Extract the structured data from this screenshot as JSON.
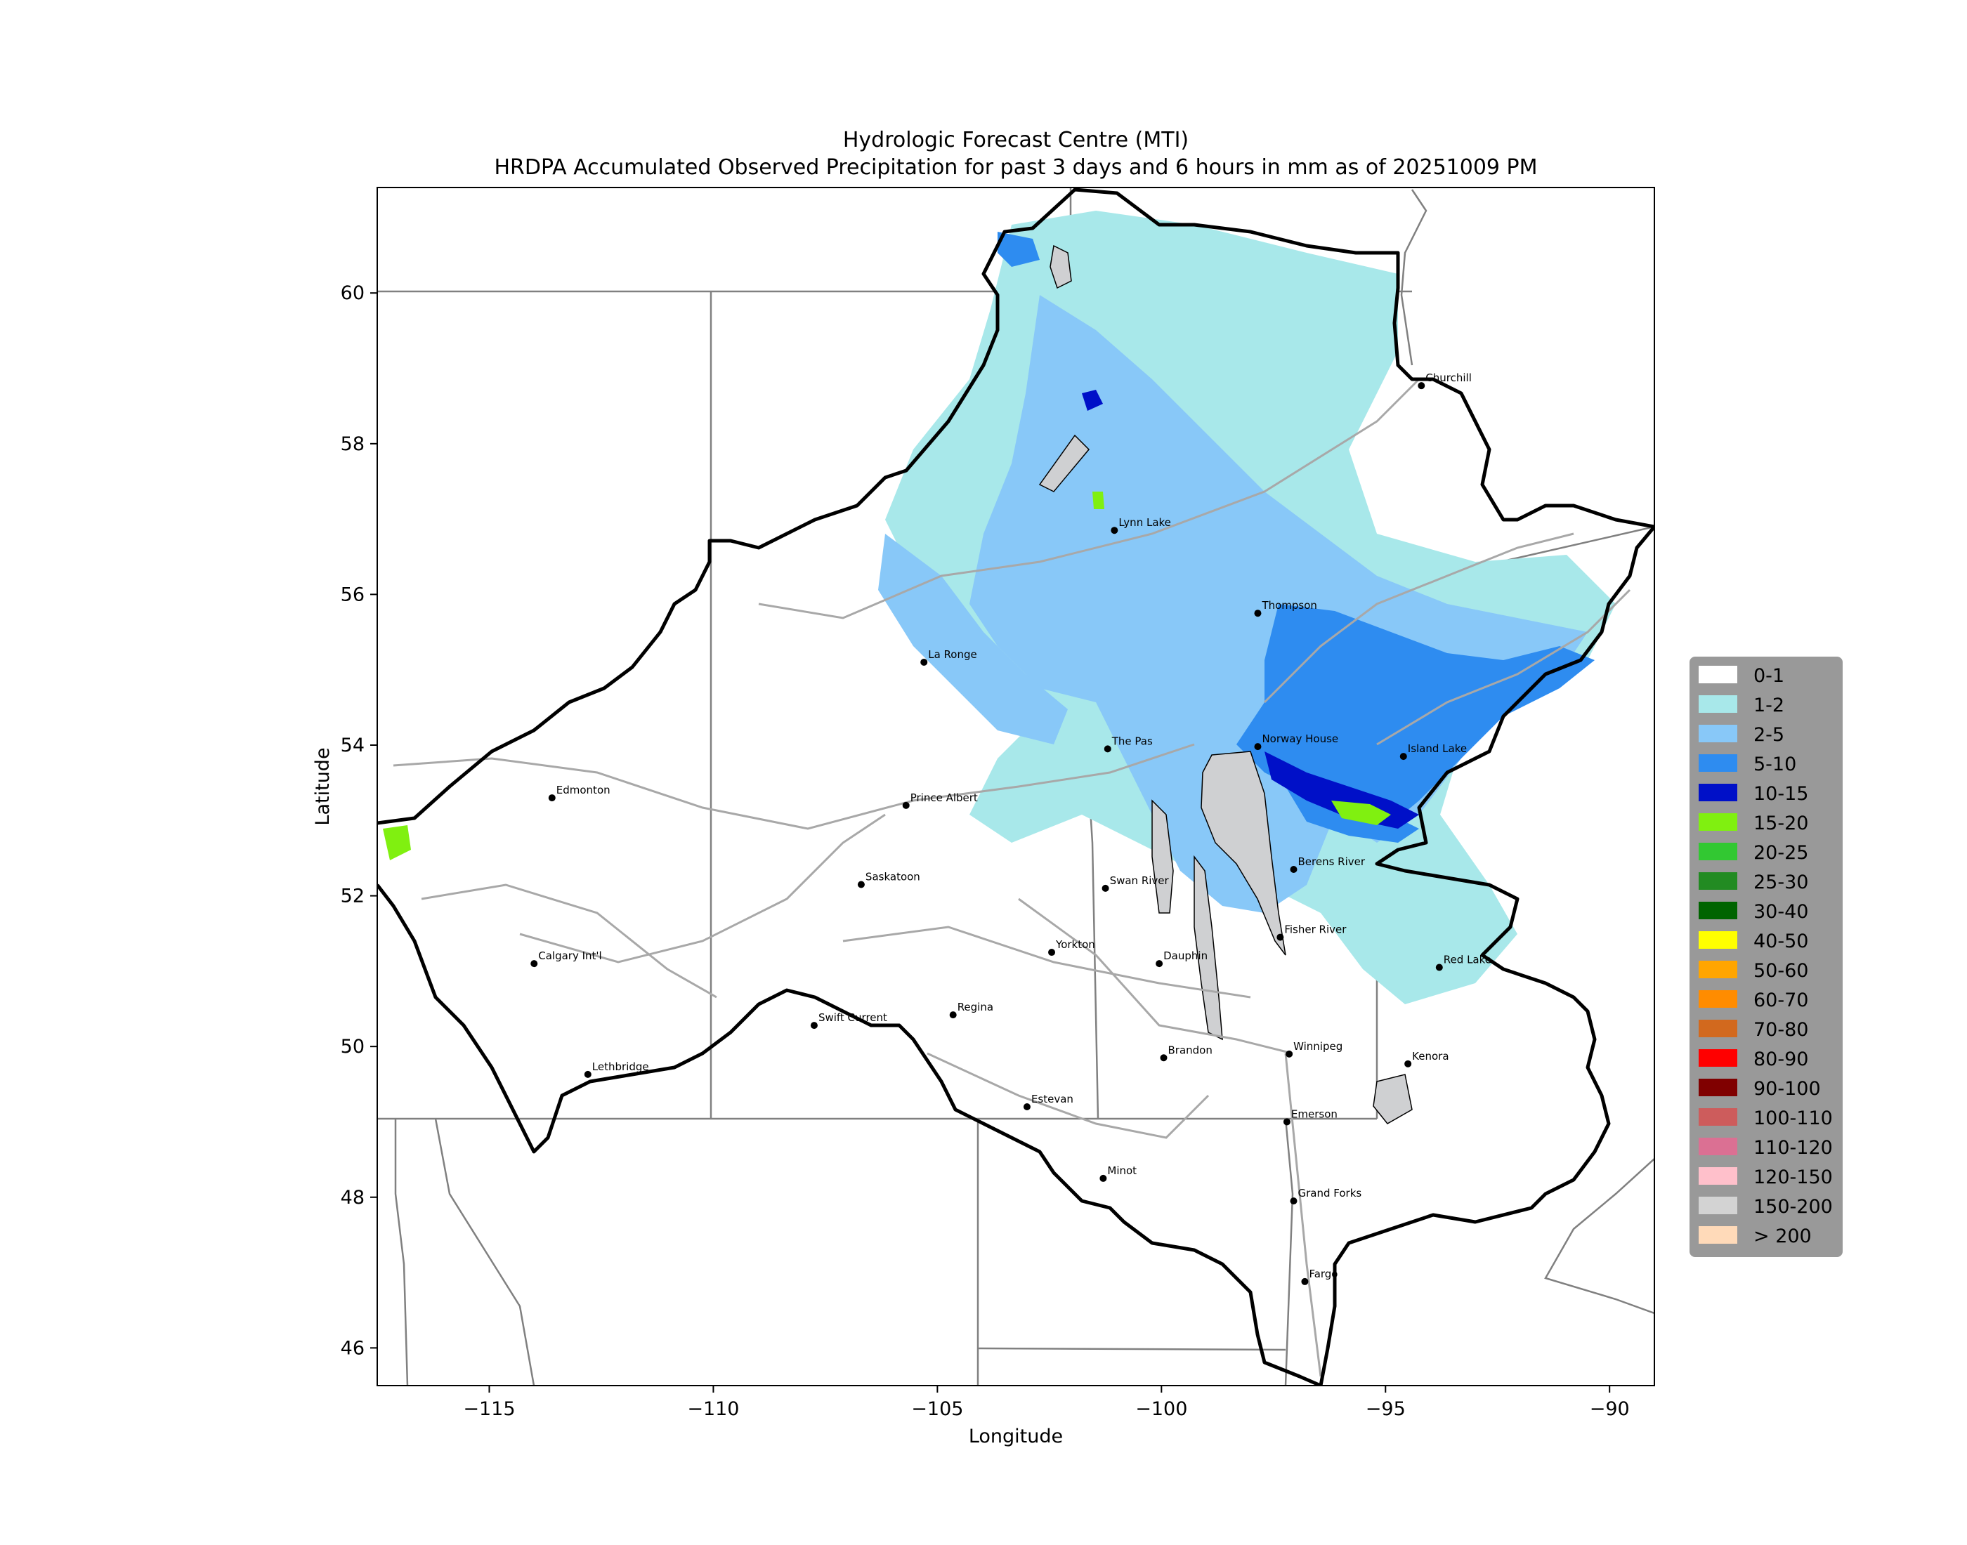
{
  "title": {
    "line1": "Hydrologic Forecast Centre (MTI)",
    "line2": "HRDPA Accumulated Observed Precipitation for past 3 days and 6 hours in mm as of 20251009 PM"
  },
  "axes": {
    "xlabel": "Longitude",
    "ylabel": "Latitude",
    "xlim": [
      -117.5,
      -89.0
    ],
    "ylim": [
      45.5,
      61.4
    ],
    "xticks": [
      {
        "value": -115,
        "label": "−115"
      },
      {
        "value": -110,
        "label": "−110"
      },
      {
        "value": -105,
        "label": "−105"
      },
      {
        "value": -100,
        "label": "−100"
      },
      {
        "value": -95,
        "label": "−95"
      },
      {
        "value": -90,
        "label": "−90"
      }
    ],
    "yticks": [
      {
        "value": 46,
        "label": "46"
      },
      {
        "value": 48,
        "label": "48"
      },
      {
        "value": 50,
        "label": "50"
      },
      {
        "value": 52,
        "label": "52"
      },
      {
        "value": 54,
        "label": "54"
      },
      {
        "value": 56,
        "label": "56"
      },
      {
        "value": 58,
        "label": "58"
      },
      {
        "value": 60,
        "label": "60"
      }
    ]
  },
  "cities": [
    {
      "name": "Churchill",
      "lon": -94.2,
      "lat": 58.77
    },
    {
      "name": "Lynn Lake",
      "lon": -101.05,
      "lat": 56.85
    },
    {
      "name": "Thompson",
      "lon": -97.85,
      "lat": 55.75
    },
    {
      "name": "La Ronge",
      "lon": -105.3,
      "lat": 55.1
    },
    {
      "name": "The Pas",
      "lon": -101.2,
      "lat": 53.95
    },
    {
      "name": "Norway House",
      "lon": -97.85,
      "lat": 53.98
    },
    {
      "name": "Island Lake",
      "lon": -94.6,
      "lat": 53.85
    },
    {
      "name": "Edmonton",
      "lon": -113.6,
      "lat": 53.3
    },
    {
      "name": "Prince Albert",
      "lon": -105.7,
      "lat": 53.2
    },
    {
      "name": "Saskatoon",
      "lon": -106.7,
      "lat": 52.15
    },
    {
      "name": "Swan River",
      "lon": -101.25,
      "lat": 52.1
    },
    {
      "name": "Berens River",
      "lon": -97.05,
      "lat": 52.35
    },
    {
      "name": "Yorkton",
      "lon": -102.45,
      "lat": 51.25
    },
    {
      "name": "Dauphin",
      "lon": -100.05,
      "lat": 51.1
    },
    {
      "name": "Fisher River",
      "lon": -97.35,
      "lat": 51.45
    },
    {
      "name": "Red Lake",
      "lon": -93.8,
      "lat": 51.05
    },
    {
      "name": "Calgary Int'l",
      "lon": -114.0,
      "lat": 51.1
    },
    {
      "name": "Swift Current",
      "lon": -107.75,
      "lat": 50.28
    },
    {
      "name": "Regina",
      "lon": -104.65,
      "lat": 50.42
    },
    {
      "name": "Brandon",
      "lon": -99.95,
      "lat": 49.85
    },
    {
      "name": "Winnipeg",
      "lon": -97.15,
      "lat": 49.9
    },
    {
      "name": "Kenora",
      "lon": -94.5,
      "lat": 49.77
    },
    {
      "name": "Lethbridge",
      "lon": -112.8,
      "lat": 49.63
    },
    {
      "name": "Estevan",
      "lon": -103.0,
      "lat": 49.2
    },
    {
      "name": "Emerson",
      "lon": -97.2,
      "lat": 49.0
    },
    {
      "name": "Minot",
      "lon": -101.3,
      "lat": 48.25
    },
    {
      "name": "Grand Forks",
      "lon": -97.05,
      "lat": 47.95
    },
    {
      "name": "Fargo",
      "lon": -96.8,
      "lat": 46.88
    }
  ],
  "legend": {
    "placement": "right",
    "items": [
      {
        "label": "0-1",
        "color": "#ffffff"
      },
      {
        "label": "1-2",
        "color": "#a8e8ea"
      },
      {
        "label": "2-5",
        "color": "#88c8f8"
      },
      {
        "label": "5-10",
        "color": "#2e8cf0"
      },
      {
        "label": "10-15",
        "color": "#0010c8"
      },
      {
        "label": "15-20",
        "color": "#80f010"
      },
      {
        "label": "20-25",
        "color": "#32c832"
      },
      {
        "label": "25-30",
        "color": "#228b22"
      },
      {
        "label": "30-40",
        "color": "#006400"
      },
      {
        "label": "40-50",
        "color": "#ffff00"
      },
      {
        "label": "50-60",
        "color": "#ffa500"
      },
      {
        "label": "60-70",
        "color": "#ff8c00"
      },
      {
        "label": "70-80",
        "color": "#d2691e"
      },
      {
        "label": "80-90",
        "color": "#ff0000"
      },
      {
        "label": "90-100",
        "color": "#800000"
      },
      {
        "label": "100-110",
        "color": "#cd5c5c"
      },
      {
        "label": "110-120",
        "color": "#db7093"
      },
      {
        "label": "120-150",
        "color": "#ffc0cb"
      },
      {
        "label": "150-200",
        "color": "#d3d3d3"
      },
      {
        "label": "> 200",
        "color": "#ffdab9"
      }
    ]
  },
  "colors": {
    "lake": "#cfd0d2",
    "basin_outline": "#000000",
    "political_border": "#808080",
    "river": "#a8a8a8",
    "legend_background": "#999999"
  }
}
